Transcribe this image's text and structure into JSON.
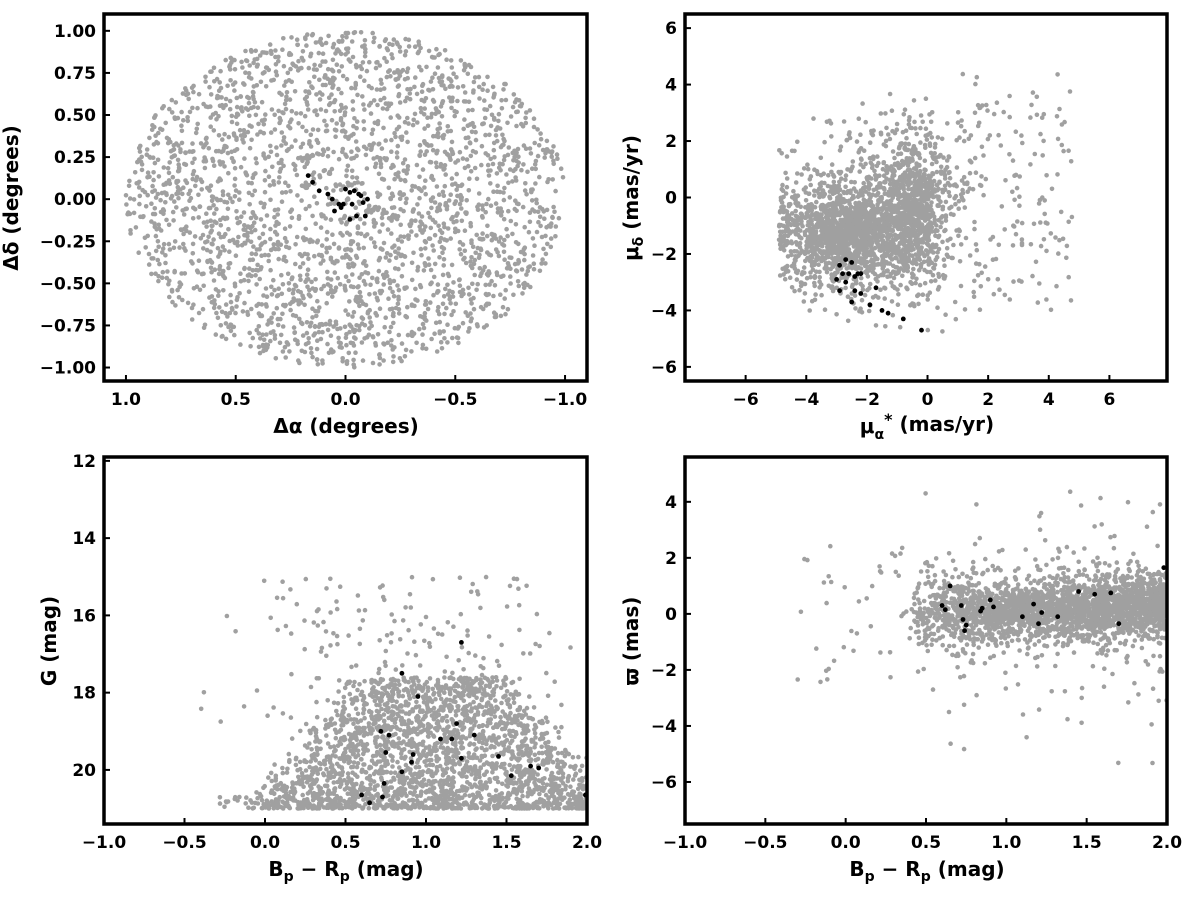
{
  "colors": {
    "field": "#a0a0a0",
    "member": "#000000"
  },
  "panels": [
    {
      "id": "sky",
      "chart_data": {
        "type": "scatter",
        "xlabel": "Δα (degrees)",
        "ylabel": "Δδ (degrees)",
        "xlim": [
          1.1,
          -1.1
        ],
        "ylim": [
          -1.08,
          1.1
        ],
        "xticks": [
          1.0,
          0.5,
          0.0,
          -0.5,
          -1.0
        ],
        "xtick_labels": [
          "1.0",
          "0.5",
          "0.0",
          "−0.5",
          "−1.0"
        ],
        "yticks": [
          -1.0,
          -0.75,
          -0.5,
          -0.25,
          0.0,
          0.25,
          0.5,
          0.75,
          1.0
        ],
        "ytick_labels": [
          "−1.00",
          "−0.75",
          "−0.50",
          "−0.25",
          "0.00",
          "0.25",
          "0.50",
          "0.75",
          "1.00"
        ],
        "field": {
          "region": "disk",
          "center": [
            0,
            0
          ],
          "radius": 1.0,
          "count": 2600
        },
        "members": [
          [
            0.17,
            0.14
          ],
          [
            0.15,
            0.1
          ],
          [
            0.12,
            0.05
          ],
          [
            0.08,
            0.03
          ],
          [
            0.06,
            0.0
          ],
          [
            0.05,
            -0.07
          ],
          [
            0.03,
            -0.03
          ],
          [
            0.01,
            -0.03
          ],
          [
            0.0,
            0.06
          ],
          [
            -0.02,
            0.04
          ],
          [
            -0.04,
            0.05
          ],
          [
            -0.06,
            0.03
          ],
          [
            -0.07,
            0.02
          ],
          [
            -0.08,
            -0.02
          ],
          [
            -0.1,
            0.0
          ],
          [
            -0.02,
            -0.12
          ],
          [
            -0.05,
            -0.1
          ],
          [
            -0.09,
            -0.1
          ],
          [
            -0.03,
            -0.03
          ],
          [
            0.02,
            -0.05
          ]
        ]
      }
    },
    {
      "id": "pm",
      "chart_data": {
        "type": "scatter",
        "xlabel": "μα* (mas/yr)",
        "ylabel": "μδ (mas/yr)",
        "xlim": [
          -8,
          7.9
        ],
        "ylim": [
          -6.5,
          6.5
        ],
        "xticks": [
          -6,
          -4,
          -2,
          0,
          2,
          4,
          6
        ],
        "xtick_labels": [
          "−6",
          "−4",
          "−2",
          "0",
          "2",
          "4",
          "6"
        ],
        "yticks": [
          -6,
          -4,
          -2,
          0,
          2,
          4,
          6
        ],
        "ytick_labels": [
          "−6",
          "−4",
          "−2",
          "0",
          "2",
          "4",
          "6"
        ],
        "field": {
          "region": "pm-clouds",
          "count": 2600
        },
        "members": [
          [
            -2.9,
            -2.4
          ],
          [
            -2.7,
            -2.2
          ],
          [
            -2.5,
            -2.3
          ],
          [
            -2.8,
            -2.7
          ],
          [
            -2.6,
            -2.7
          ],
          [
            -2.4,
            -2.8
          ],
          [
            -3.0,
            -2.9
          ],
          [
            -2.7,
            -3.0
          ],
          [
            -2.3,
            -2.7
          ],
          [
            -2.2,
            -2.7
          ],
          [
            -2.9,
            -3.3
          ],
          [
            -2.4,
            -3.3
          ],
          [
            -2.2,
            -3.4
          ],
          [
            -1.7,
            -3.2
          ],
          [
            -1.9,
            -3.8
          ],
          [
            -2.5,
            -3.7
          ],
          [
            -1.5,
            -4.0
          ],
          [
            -1.3,
            -4.1
          ],
          [
            -0.8,
            -4.3
          ],
          [
            -0.2,
            -4.7
          ]
        ]
      }
    },
    {
      "id": "cmd",
      "chart_data": {
        "type": "scatter",
        "xlabel": "Bp − Rp (mag)",
        "ylabel": "G (mag)",
        "xlim": [
          -1.0,
          2.0
        ],
        "ylim": [
          21.4,
          11.9
        ],
        "xticks": [
          -1.0,
          -0.5,
          0.0,
          0.5,
          1.0,
          1.5,
          2.0
        ],
        "xtick_labels": [
          "−1.0",
          "−0.5",
          "0.0",
          "0.5",
          "1.0",
          "1.5",
          "2.0"
        ],
        "yticks": [
          12,
          14,
          16,
          18,
          20
        ],
        "ytick_labels": [
          "12",
          "14",
          "16",
          "18",
          "20"
        ],
        "field": {
          "region": "cmd-wedge",
          "count": 2600
        },
        "members": [
          [
            0.6,
            20.65
          ],
          [
            0.65,
            20.85
          ],
          [
            0.73,
            20.7
          ],
          [
            0.74,
            20.35
          ],
          [
            0.85,
            20.05
          ],
          [
            0.91,
            19.8
          ],
          [
            0.75,
            19.55
          ],
          [
            0.92,
            19.6
          ],
          [
            0.77,
            19.1
          ],
          [
            0.72,
            19.0
          ],
          [
            1.09,
            19.2
          ],
          [
            1.16,
            19.2
          ],
          [
            1.22,
            19.7
          ],
          [
            1.3,
            19.1
          ],
          [
            1.45,
            19.65
          ],
          [
            1.53,
            20.15
          ],
          [
            1.65,
            19.9
          ],
          [
            1.7,
            19.95
          ],
          [
            1.19,
            18.8
          ],
          [
            0.95,
            18.1
          ],
          [
            0.85,
            17.5
          ],
          [
            1.22,
            16.7
          ],
          [
            1.99,
            20.65
          ]
        ]
      }
    },
    {
      "id": "plx",
      "chart_data": {
        "type": "scatter",
        "xlabel": "Bp − Rp (mag)",
        "ylabel": "ϖ (mas)",
        "xlim": [
          -1.0,
          2.0
        ],
        "ylim": [
          -7.5,
          5.6
        ],
        "xticks": [
          -1.0,
          -0.5,
          0.0,
          0.5,
          1.0,
          1.5,
          2.0
        ],
        "xtick_labels": [
          "−1.0",
          "−0.5",
          "0.0",
          "0.5",
          "1.0",
          "1.5",
          "2.0"
        ],
        "yticks": [
          -6,
          -4,
          -2,
          0,
          2,
          4
        ],
        "ytick_labels": [
          "−6",
          "−4",
          "−2",
          "0",
          "2",
          "4"
        ],
        "field": {
          "region": "plx-band",
          "count": 2600
        },
        "members": [
          [
            0.6,
            0.3
          ],
          [
            0.62,
            0.15
          ],
          [
            0.65,
            1.0
          ],
          [
            0.72,
            0.3
          ],
          [
            0.73,
            -0.2
          ],
          [
            0.74,
            -0.6
          ],
          [
            0.75,
            -0.4
          ],
          [
            0.84,
            0.1
          ],
          [
            0.85,
            0.2
          ],
          [
            0.9,
            0.5
          ],
          [
            0.92,
            0.25
          ],
          [
            1.1,
            -0.1
          ],
          [
            1.17,
            0.35
          ],
          [
            1.2,
            -0.35
          ],
          [
            1.22,
            0.05
          ],
          [
            1.32,
            -0.1
          ],
          [
            1.45,
            0.8
          ],
          [
            1.55,
            0.7
          ],
          [
            1.65,
            0.75
          ],
          [
            1.7,
            -0.35
          ],
          [
            1.98,
            1.65
          ]
        ]
      }
    }
  ]
}
